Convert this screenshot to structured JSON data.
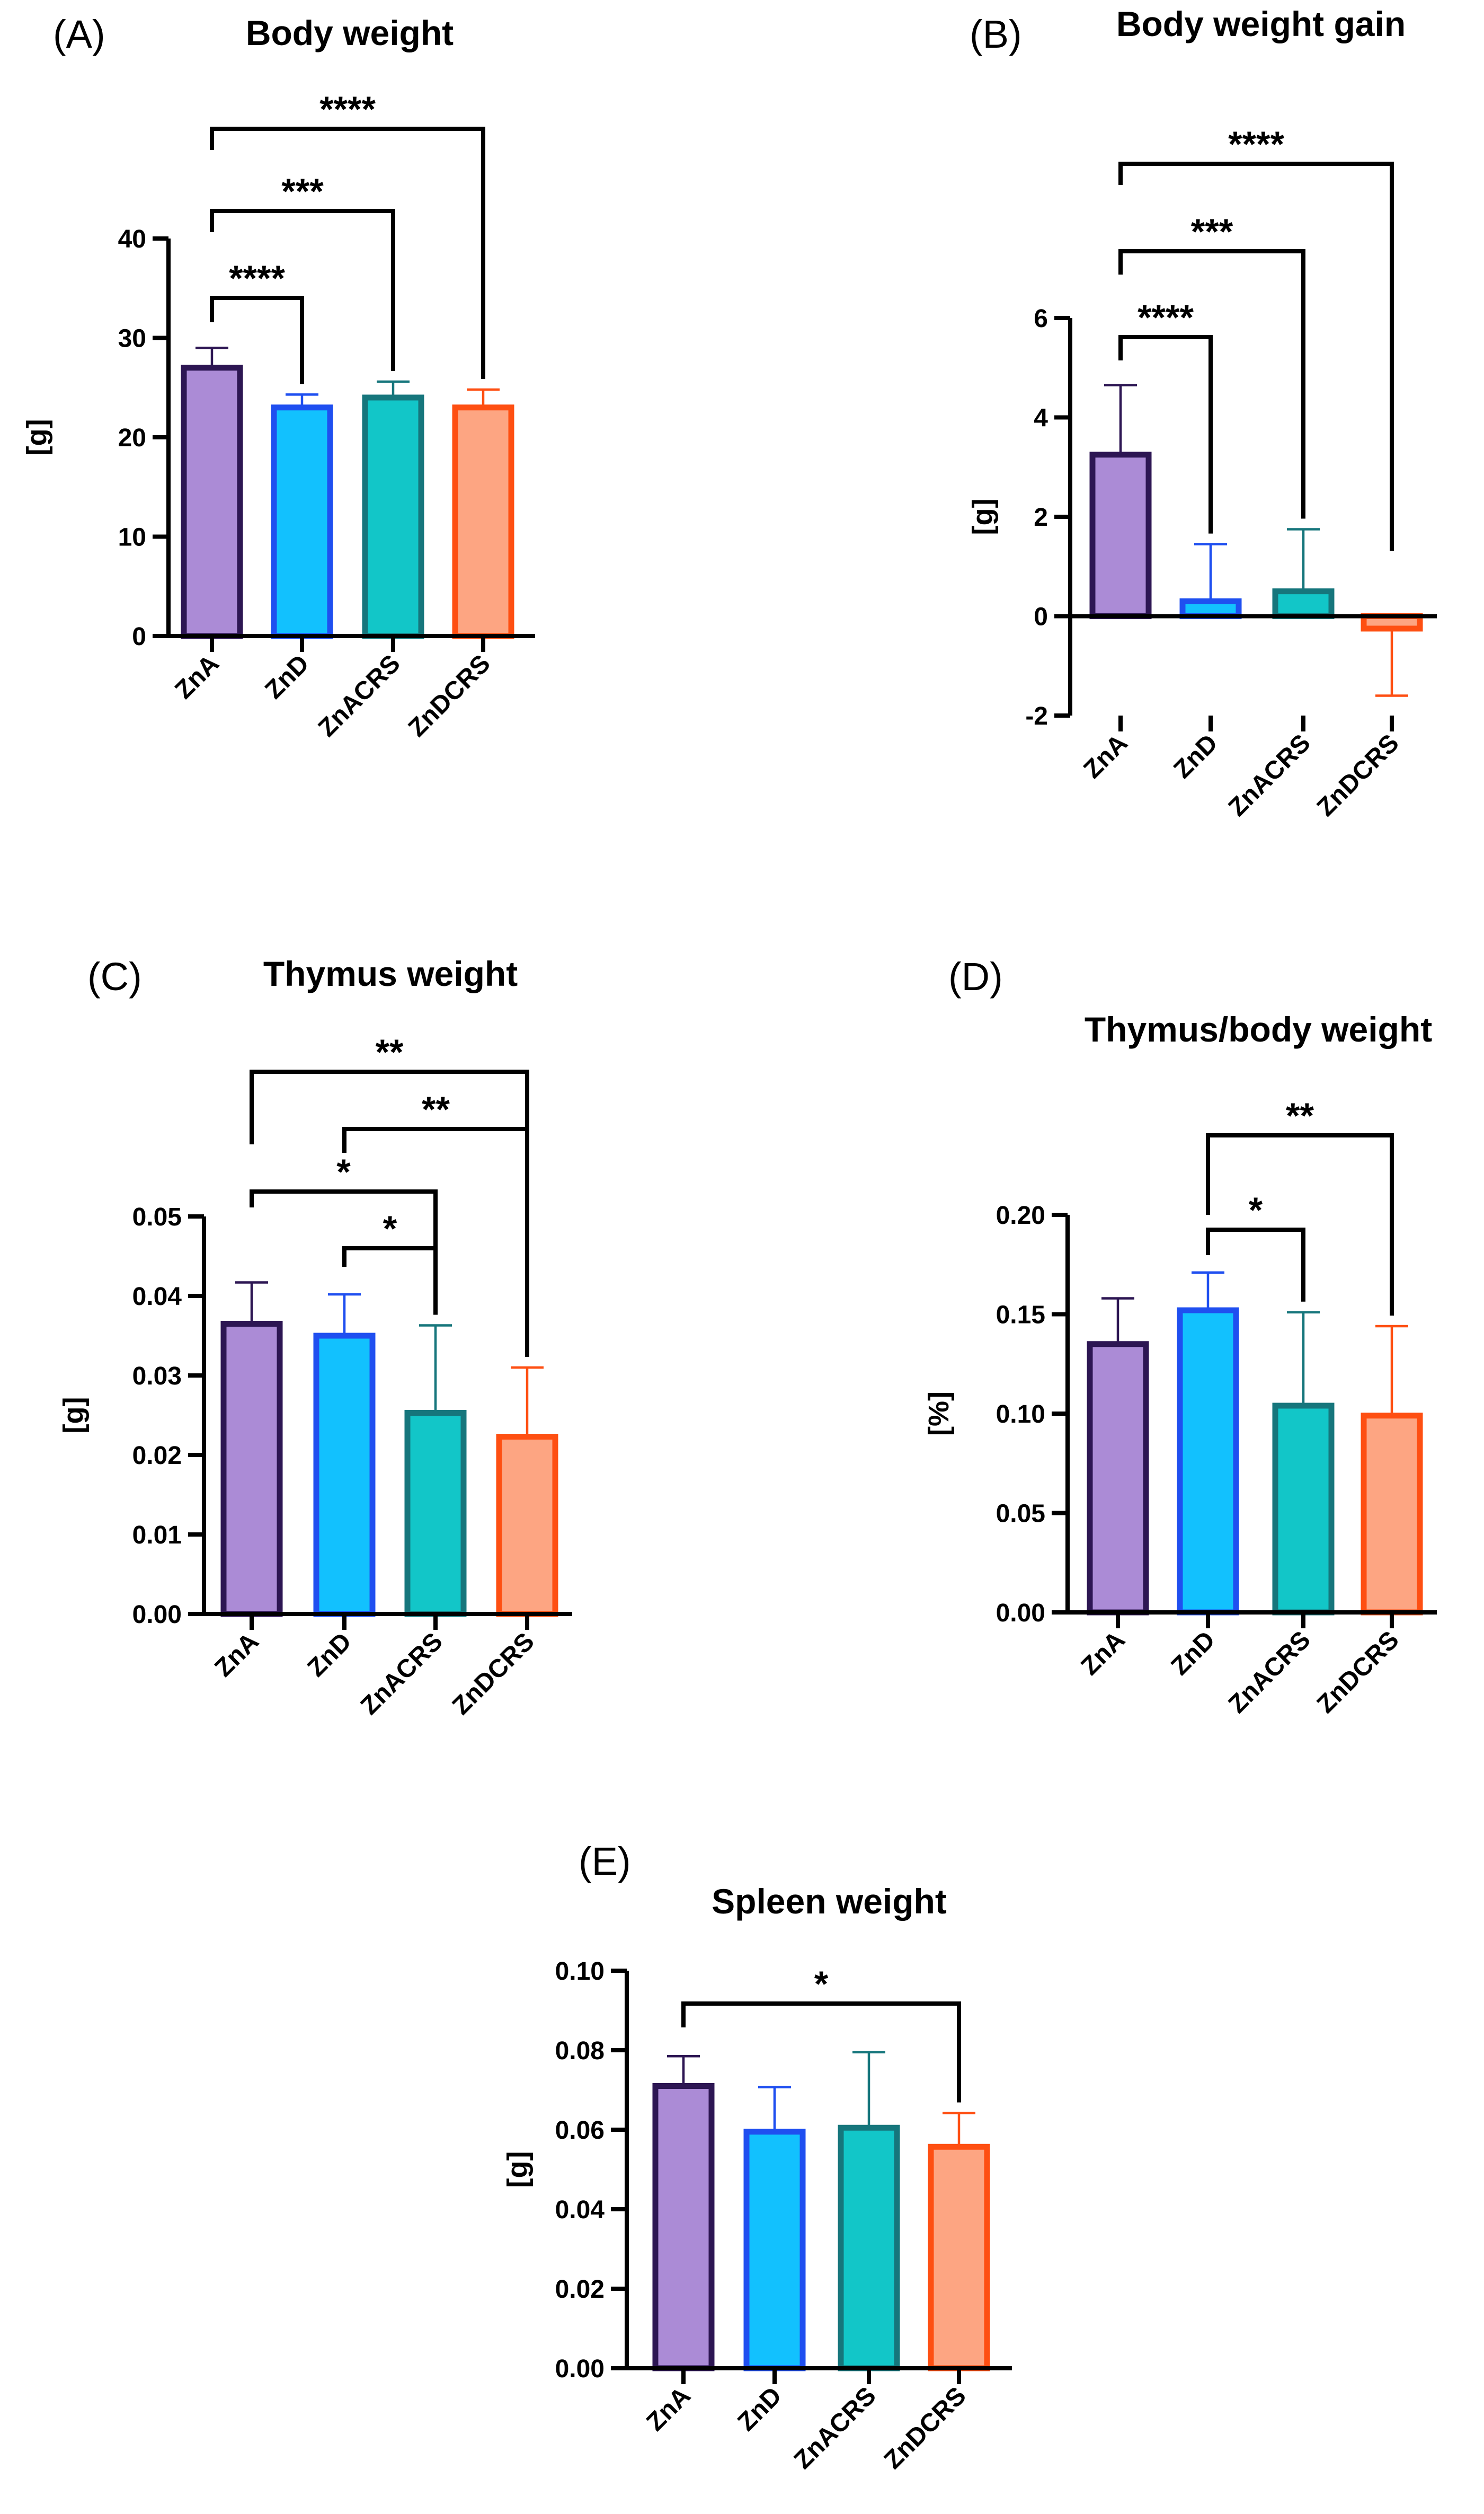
{
  "colors": {
    "ZnA": {
      "fill": "#ab8bd6",
      "stroke": "#2d1653"
    },
    "ZnD": {
      "fill": "#12c1fe",
      "stroke": "#1f4ff0"
    },
    "ZnACRS": {
      "fill": "#12c6c8",
      "stroke": "#16767c"
    },
    "ZnDCRS": {
      "fill": "#fda582",
      "stroke": "#fe4f12"
    }
  },
  "chart_data": [
    {
      "panel": "(A)",
      "type": "bar",
      "title": "Body weight",
      "ylabel": "[g]",
      "xlabel": "",
      "categories": [
        "ZnA",
        "ZnD",
        "ZnACRS",
        "ZnDCRS"
      ],
      "values": [
        27.0,
        23.0,
        24.0,
        23.0
      ],
      "errors": [
        2.0,
        1.3,
        1.6,
        1.8
      ],
      "ylim": [
        0,
        40
      ],
      "yticks": [
        0,
        10,
        20,
        30,
        40
      ],
      "ytick_labels": [
        "0",
        "10",
        "20",
        "30",
        "40"
      ],
      "significance": [
        {
          "from": 0,
          "to": 1,
          "label": "****"
        },
        {
          "from": 0,
          "to": 2,
          "label": "***"
        },
        {
          "from": 0,
          "to": 3,
          "label": "****"
        }
      ]
    },
    {
      "panel": "(B)",
      "type": "bar",
      "title": "Body weight gain",
      "ylabel": "[g]",
      "xlabel": "",
      "categories": [
        "ZnA",
        "ZnD",
        "ZnACRS",
        "ZnDCRS"
      ],
      "values": [
        3.25,
        0.3,
        0.5,
        -0.25
      ],
      "errors": [
        1.4,
        1.15,
        1.25,
        1.35
      ],
      "ylim": [
        -2,
        6
      ],
      "yticks": [
        -2,
        0,
        2,
        4,
        6
      ],
      "ytick_labels": [
        "-2",
        "0",
        "2",
        "4",
        "6"
      ],
      "significance": [
        {
          "from": 0,
          "to": 1,
          "label": "****"
        },
        {
          "from": 0,
          "to": 2,
          "label": "***"
        },
        {
          "from": 0,
          "to": 3,
          "label": "****"
        }
      ]
    },
    {
      "panel": "(C)",
      "type": "bar",
      "title": "Thymus weight",
      "ylabel": "[g]",
      "xlabel": "",
      "categories": [
        "ZnA",
        "ZnD",
        "ZnACRS",
        "ZnDCRS"
      ],
      "values": [
        0.0365,
        0.035,
        0.0253,
        0.0223
      ],
      "errors": [
        0.0052,
        0.0052,
        0.011,
        0.0087
      ],
      "ylim": [
        0,
        0.05
      ],
      "yticks": [
        0,
        0.01,
        0.02,
        0.03,
        0.04,
        0.05
      ],
      "ytick_labels": [
        "0.00",
        "0.01",
        "0.02",
        "0.03",
        "0.04",
        "0.05"
      ],
      "significance": [
        {
          "from": 1,
          "to": 2,
          "label": "*"
        },
        {
          "from": 0,
          "to": 2,
          "label": "*"
        },
        {
          "from": 1,
          "to": 3,
          "label": "**"
        },
        {
          "from": 0,
          "to": 3,
          "label": "**"
        }
      ]
    },
    {
      "panel": "(D)",
      "type": "bar",
      "title": "Thymus/body weight",
      "ylabel": "[%]",
      "xlabel": "",
      "categories": [
        "ZnA",
        "ZnD",
        "ZnACRS",
        "ZnDCRS"
      ],
      "values": [
        0.135,
        0.152,
        0.104,
        0.099
      ],
      "errors": [
        0.023,
        0.019,
        0.047,
        0.045
      ],
      "ylim": [
        0,
        0.2
      ],
      "yticks": [
        0,
        0.05,
        0.1,
        0.15,
        0.2
      ],
      "ytick_labels": [
        "0.00",
        "0.05",
        "0.10",
        "0.15",
        "0.20"
      ],
      "significance": [
        {
          "from": 1,
          "to": 2,
          "label": "*"
        },
        {
          "from": 1,
          "to": 3,
          "label": "**"
        }
      ]
    },
    {
      "panel": "(E)",
      "type": "bar",
      "title": "Spleen weight",
      "ylabel": "[g]",
      "xlabel": "",
      "categories": [
        "ZnA",
        "ZnD",
        "ZnACRS",
        "ZnDCRS"
      ],
      "values": [
        0.071,
        0.0595,
        0.0605,
        0.0557
      ],
      "errors": [
        0.0075,
        0.0112,
        0.019,
        0.0085
      ],
      "ylim": [
        0,
        0.1
      ],
      "yticks": [
        0,
        0.02,
        0.04,
        0.06,
        0.08,
        0.1
      ],
      "ytick_labels": [
        "0.00",
        "0.02",
        "0.04",
        "0.06",
        "0.08",
        "0.10"
      ],
      "significance": [
        {
          "from": 0,
          "to": 3,
          "label": "*"
        }
      ]
    }
  ]
}
